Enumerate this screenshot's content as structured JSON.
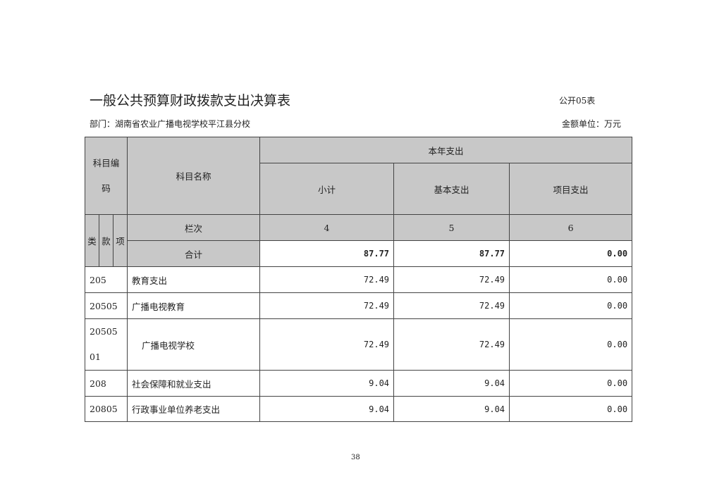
{
  "header": {
    "title": "一般公共预算财政拨款支出决算表",
    "table_code": "公开05表",
    "department": "部门：湖南省农业广播电视学校平江县分校",
    "unit": "金额单位：万元"
  },
  "columns": {
    "subject_code": "科目编码",
    "subject_name": "科目名称",
    "current_year": "本年支出",
    "subtotal": "小计",
    "basic": "基本支出",
    "project": "项目支出",
    "lei": "类",
    "kuan": "款",
    "xiang": "项",
    "column_no": "栏次",
    "col_nums": [
      "4",
      "5",
      "6"
    ]
  },
  "total": {
    "label": "合计",
    "values": [
      "87.77",
      "87.77",
      "0.00"
    ]
  },
  "rows": [
    {
      "code": "205",
      "name": "教育支出",
      "values": [
        "72.49",
        "72.49",
        "0.00"
      ]
    },
    {
      "code": "20505",
      "name": "广播电视教育",
      "values": [
        "72.49",
        "72.49",
        "0.00"
      ]
    },
    {
      "code": "2050501",
      "name": "广播电视学校",
      "values": [
        "72.49",
        "72.49",
        "0.00"
      ]
    },
    {
      "code": "208",
      "name": "社会保障和就业支出",
      "values": [
        "9.04",
        "9.04",
        "0.00"
      ]
    },
    {
      "code": "20805",
      "name": "行政事业单位养老支出",
      "values": [
        "9.04",
        "9.04",
        "0.00"
      ]
    }
  ],
  "page_number": "38"
}
